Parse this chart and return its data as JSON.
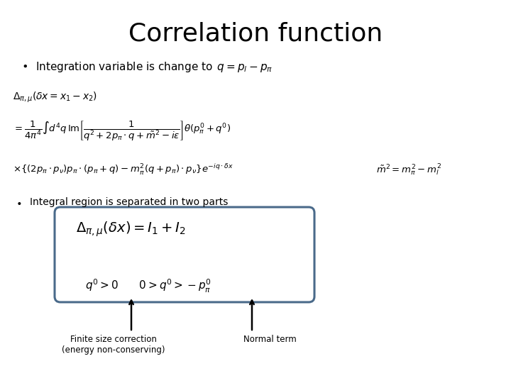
{
  "title": "Correlation function",
  "title_fontsize": 26,
  "bg_color": "#ffffff",
  "box_color": "#4a6a8a",
  "box_fill": "#ffffff",
  "arrow1_label": "Finite size correction\n(energy non-conserving)",
  "arrow2_label": "Normal term"
}
